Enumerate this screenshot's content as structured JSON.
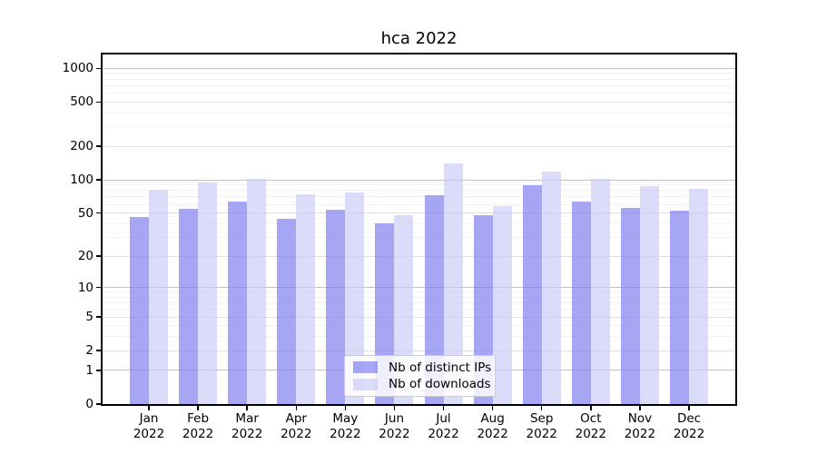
{
  "title": "hca 2022",
  "chart_data": {
    "type": "bar",
    "scale": "log1p",
    "title": "hca 2022",
    "xlabel": "",
    "ylabel": "",
    "categories": [
      "Jan",
      "Feb",
      "Mar",
      "Apr",
      "May",
      "Jun",
      "Jul",
      "Aug",
      "Sep",
      "Oct",
      "Nov",
      "Dec"
    ],
    "category_year": "2022",
    "series": [
      {
        "name": "Nb of distinct IPs",
        "color": "#8080f0",
        "values": [
          46,
          55,
          63,
          44,
          54,
          40,
          73,
          48,
          89,
          63,
          56,
          53
        ]
      },
      {
        "name": "Nb of downloads",
        "color": "#ccccf8",
        "values": [
          82,
          95,
          103,
          74,
          77,
          48,
          140,
          58,
          118,
          102,
          88,
          83
        ]
      }
    ],
    "ylim": [
      0,
      1332
    ],
    "yticks": [
      0,
      1,
      2,
      5,
      10,
      20,
      50,
      100,
      200,
      500,
      1000
    ],
    "grid": {
      "on": true,
      "major": [
        1,
        10,
        100,
        1000
      ],
      "mid": [
        2,
        5,
        20,
        50,
        200,
        500
      ],
      "minor": [
        3,
        4,
        6,
        7,
        8,
        9,
        30,
        40,
        60,
        70,
        80,
        90,
        300,
        400,
        600,
        700,
        800,
        900
      ]
    },
    "legend_position": "lower center"
  }
}
